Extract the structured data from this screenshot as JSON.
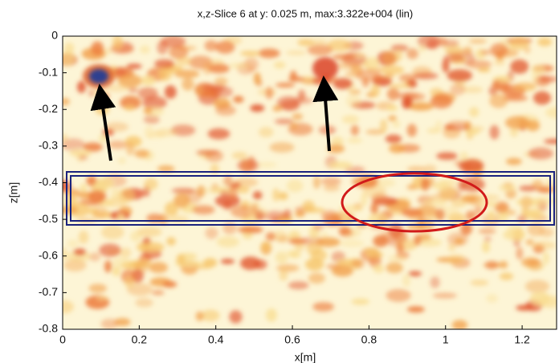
{
  "chart_data": {
    "type": "heatmap",
    "title": "x,z-Slice 6 at y: 0.025 m, max:3.322e+004 (lin)",
    "x_label": "x[m]",
    "y_label": "z[m]",
    "xlim": [
      0,
      1.29
    ],
    "ylim": [
      -0.8,
      0
    ],
    "xticks": [
      0,
      0.2,
      0.4,
      0.6,
      0.8,
      1,
      1.2
    ],
    "yticks": [
      -0.8,
      -0.7,
      -0.6,
      -0.5,
      -0.4,
      -0.3,
      -0.2,
      -0.1,
      0
    ]
  }
}
